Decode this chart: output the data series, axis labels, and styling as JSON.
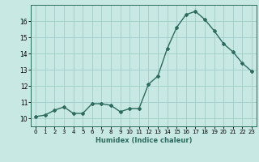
{
  "x": [
    0,
    1,
    2,
    3,
    4,
    5,
    6,
    7,
    8,
    9,
    10,
    11,
    12,
    13,
    14,
    15,
    16,
    17,
    18,
    19,
    20,
    21,
    22,
    23
  ],
  "y": [
    10.1,
    10.2,
    10.5,
    10.7,
    10.3,
    10.3,
    10.9,
    10.9,
    10.8,
    10.4,
    10.6,
    10.6,
    12.1,
    12.6,
    14.3,
    15.6,
    16.4,
    16.6,
    16.1,
    15.4,
    14.6,
    14.1,
    13.4,
    12.9
  ],
  "xlabel": "Humidex (Indice chaleur)",
  "xlim": [
    -0.5,
    23.5
  ],
  "ylim": [
    9.5,
    17.0
  ],
  "yticks": [
    10,
    11,
    12,
    13,
    14,
    15,
    16
  ],
  "xticks": [
    0,
    1,
    2,
    3,
    4,
    5,
    6,
    7,
    8,
    9,
    10,
    11,
    12,
    13,
    14,
    15,
    16,
    17,
    18,
    19,
    20,
    21,
    22,
    23
  ],
  "line_color": "#2d6b5e",
  "bg_color": "#c8e8e4",
  "grid_color": "#a0cdc8",
  "marker": "D",
  "marker_size": 2.0,
  "line_width": 1.0
}
